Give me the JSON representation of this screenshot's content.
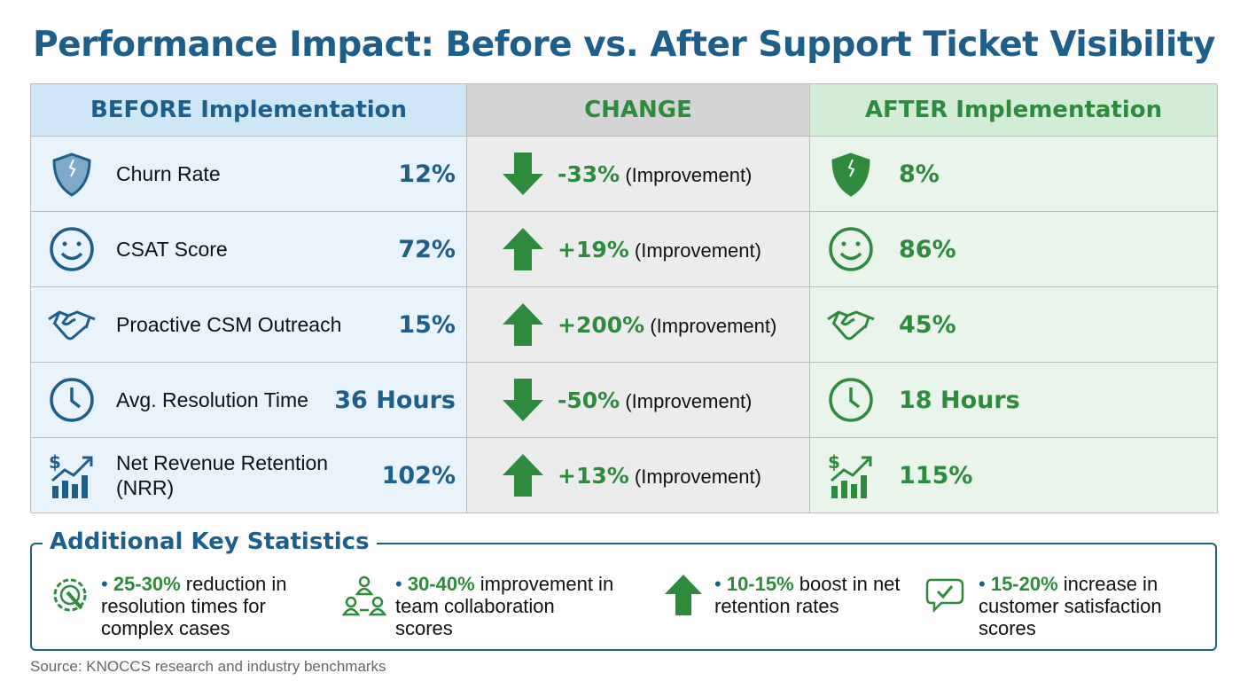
{
  "title": "Performance Impact: Before vs. After Support Ticket Visibility",
  "headers": {
    "before": "BEFORE Implementation",
    "change": "CHANGE",
    "after": "AFTER Implementation"
  },
  "colors": {
    "blue": "#1d5f8a",
    "green": "#2e8b3e"
  },
  "rows": [
    {
      "icon": "shield-icon",
      "label": "Churn Rate",
      "before": "12%",
      "direction": "down",
      "change": "-33%",
      "change_note": "(Improvement)",
      "after": "8%"
    },
    {
      "icon": "smiley-icon",
      "label": "CSAT Score",
      "before": "72%",
      "direction": "up",
      "change": "+19%",
      "change_note": "(Improvement)",
      "after": "86%"
    },
    {
      "icon": "handshake-icon",
      "label": "Proactive CSM Outreach",
      "before": "15%",
      "direction": "up",
      "change": "+200%",
      "change_note": "(Improvement)",
      "after": "45%"
    },
    {
      "icon": "clock-icon",
      "label": "Avg. Resolution Time",
      "before": "36 Hours",
      "direction": "down",
      "change": "-50%",
      "change_note": "(Improvement)",
      "after": "18 Hours"
    },
    {
      "icon": "revenue-chart-icon",
      "label": "Net Revenue Retention (NRR)",
      "before": "102%",
      "direction": "up",
      "change": "+13%",
      "change_note": "(Improvement)",
      "after": "115%"
    }
  ],
  "key_stats": {
    "title": "Additional Key Statistics",
    "items": [
      {
        "icon": "gear-wrench-icon",
        "highlight": "25-30%",
        "text": " reduction in resolution times for complex cases"
      },
      {
        "icon": "team-icon",
        "highlight": "30-40%",
        "text": " improvement in team collaboration scores"
      },
      {
        "icon": "arrow-up-icon",
        "highlight": "10-15%",
        "text": " boost in net retention rates"
      },
      {
        "icon": "chat-check-icon",
        "highlight": "15-20%",
        "text": " increase in customer satisfaction scores"
      }
    ]
  },
  "source": "Source: KNOCCS research and industry benchmarks"
}
